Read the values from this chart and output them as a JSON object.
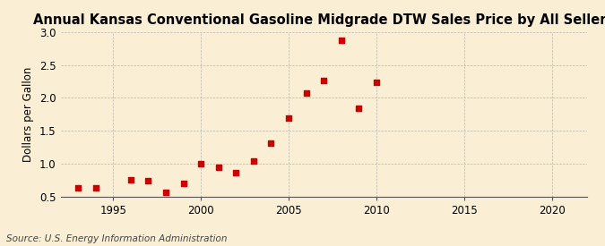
{
  "title": "Annual Kansas Conventional Gasoline Midgrade DTW Sales Price by All Sellers",
  "ylabel": "Dollars per Gallon",
  "source": "Source: U.S. Energy Information Administration",
  "background_color": "#faefd4",
  "marker_color": "#cc0000",
  "years": [
    1993,
    1994,
    1996,
    1997,
    1998,
    1999,
    2000,
    2001,
    2002,
    2003,
    2004,
    2005,
    2006,
    2007,
    2008,
    2009,
    2010
  ],
  "values": [
    0.63,
    0.63,
    0.76,
    0.74,
    0.57,
    0.7,
    1.0,
    0.95,
    0.87,
    1.04,
    1.31,
    1.7,
    2.07,
    2.26,
    2.87,
    1.85,
    2.24
  ],
  "xlim": [
    1992,
    2022
  ],
  "ylim": [
    0.5,
    3.0
  ],
  "xticks": [
    1995,
    2000,
    2005,
    2010,
    2015,
    2020
  ],
  "yticks": [
    0.5,
    1.0,
    1.5,
    2.0,
    2.5,
    3.0
  ],
  "title_fontsize": 10.5,
  "label_fontsize": 8.5,
  "source_fontsize": 7.5,
  "grid_color": "#aaaaaa",
  "grid_alpha": 0.8,
  "grid_linewidth": 0.5
}
